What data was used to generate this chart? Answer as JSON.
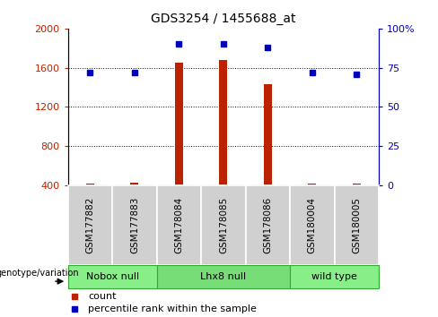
{
  "title": "GDS3254 / 1455688_at",
  "samples": [
    "GSM177882",
    "GSM177883",
    "GSM178084",
    "GSM178085",
    "GSM178086",
    "GSM180004",
    "GSM180005"
  ],
  "counts": [
    415,
    425,
    1650,
    1680,
    1430,
    415,
    420
  ],
  "percentiles": [
    72,
    72,
    90,
    90,
    88,
    72,
    71
  ],
  "ylim_left": [
    400,
    2000
  ],
  "ylim_right": [
    0,
    100
  ],
  "yticks_left": [
    400,
    800,
    1200,
    1600,
    2000
  ],
  "yticks_right": [
    0,
    25,
    50,
    75,
    100
  ],
  "ytick_labels_right": [
    "0",
    "25",
    "50",
    "75",
    "100%"
  ],
  "bar_color": "#bb2200",
  "dot_color": "#0000bb",
  "groups": [
    {
      "label": "Nobox null",
      "start": 0,
      "end": 1,
      "color": "#88ee88"
    },
    {
      "label": "Lhx8 null",
      "start": 2,
      "end": 4,
      "color": "#77dd77"
    },
    {
      "label": "wild type",
      "start": 5,
      "end": 6,
      "color": "#88ee88"
    }
  ],
  "group_box_color": "#d0d0d0",
  "legend_count_label": "count",
  "legend_pct_label": "percentile rank within the sample",
  "genotype_label": "genotype/variation",
  "title_fontsize": 10,
  "tick_fontsize": 8,
  "label_fontsize": 7.5,
  "group_fontsize": 8,
  "legend_fontsize": 8
}
